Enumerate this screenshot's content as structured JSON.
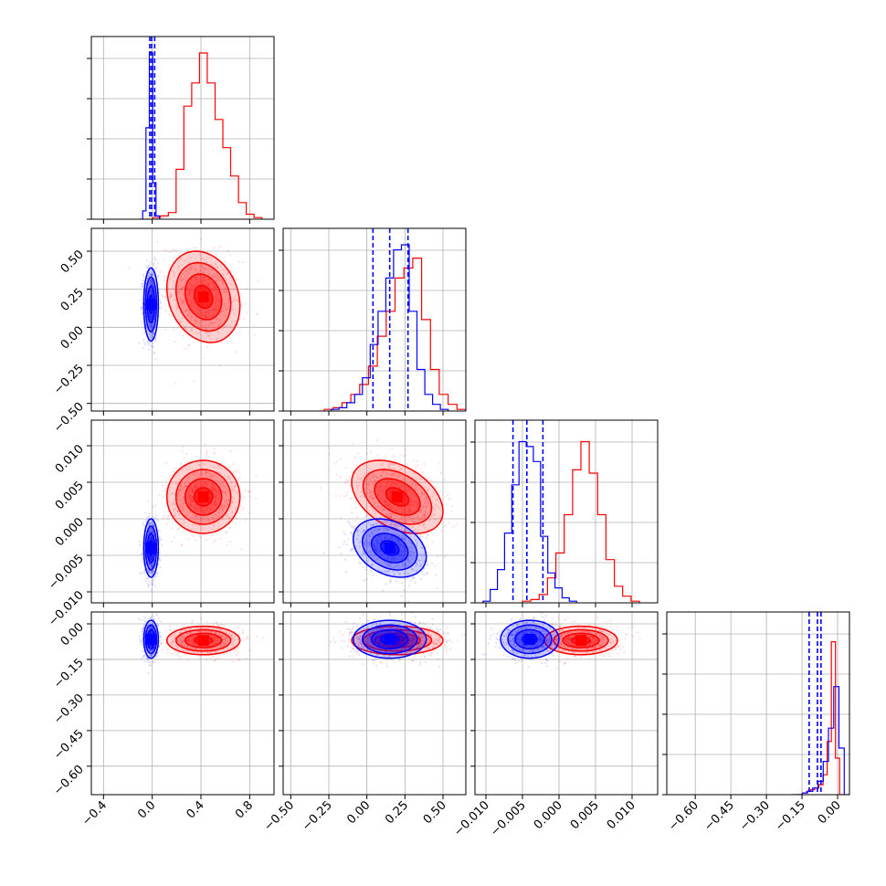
{
  "chart_data": {
    "type": "corner",
    "grid": true,
    "series_colors": {
      "red": "#ff0000",
      "blue": "#0000ff"
    },
    "parameters": [
      {
        "range": [
          -0.5,
          1.0
        ],
        "ticks": [
          -0.4,
          0.0,
          0.4,
          0.8
        ],
        "tick_labels": [
          "−0.4",
          "0.0",
          "0.4",
          "0.8"
        ]
      },
      {
        "range": [
          -0.55,
          0.65
        ],
        "ticks": [
          -0.5,
          -0.25,
          0.0,
          0.25,
          0.5
        ],
        "tick_labels": [
          "−0.50",
          "−0.25",
          "0.00",
          "0.25",
          "0.50"
        ]
      },
      {
        "range": [
          -0.0115,
          0.0135
        ],
        "ticks": [
          -0.01,
          -0.005,
          0.0,
          0.005,
          0.01
        ],
        "tick_labels": [
          "−0.010",
          "−0.005",
          "0.000",
          "0.005",
          "0.010"
        ]
      },
      {
        "range": [
          -0.72,
          0.05
        ],
        "ticks": [
          -0.6,
          -0.45,
          -0.3,
          -0.15,
          0.0
        ],
        "tick_labels": [
          "−0.60",
          "−0.45",
          "−0.30",
          "−0.15",
          "0.00"
        ]
      }
    ],
    "series": [
      {
        "color": "red",
        "mean": [
          0.42,
          0.2,
          0.003,
          -0.07
        ],
        "std": [
          0.15,
          0.15,
          0.0025,
          0.03
        ],
        "corr": [
          [
            1,
            -0.2,
            0.0,
            0.0
          ],
          [
            -0.2,
            1,
            -0.4,
            0.0
          ],
          [
            0.0,
            -0.4,
            1,
            0.0
          ],
          [
            0.0,
            0.0,
            0.0,
            1
          ]
        ],
        "histograms": [
          [
            0.0,
            0.01,
            0.02,
            0.04,
            0.3,
            0.68,
            0.82,
            1.0,
            0.82,
            0.6,
            0.43,
            0.26,
            0.1,
            0.03,
            0.01
          ],
          [
            0.01,
            0.02,
            0.05,
            0.1,
            0.16,
            0.27,
            0.45,
            0.6,
            0.8,
            0.86,
            0.92,
            0.55,
            0.25,
            0.1,
            0.04,
            0.01
          ],
          [
            0.01,
            0.02,
            0.05,
            0.15,
            0.3,
            0.53,
            0.8,
            0.97,
            0.78,
            0.53,
            0.26,
            0.1,
            0.04,
            0.01
          ],
          [
            0.0,
            0.01,
            0.02,
            0.03,
            0.04,
            0.06,
            0.12,
            0.32,
            0.92,
            0.22,
            0.0
          ]
        ]
      },
      {
        "color": "blue",
        "mean": [
          -0.01,
          0.15,
          -0.004,
          -0.065
        ],
        "std": [
          0.03,
          0.12,
          0.002,
          0.04
        ],
        "corr": [
          [
            1,
            0.0,
            0.0,
            0.0
          ],
          [
            0.0,
            1,
            -0.3,
            0.0
          ],
          [
            0.0,
            -0.3,
            1,
            0.0
          ],
          [
            0.0,
            0.0,
            0.0,
            1
          ]
        ],
        "quantiles": [
          [
            -0.02,
            -0.005,
            0.02
          ],
          [
            0.04,
            0.15,
            0.27
          ],
          [
            -0.0063,
            -0.0044,
            -0.0022
          ],
          [
            -0.12,
            -0.085,
            -0.07
          ]
        ],
        "histograms": [
          [
            0.0,
            0.05,
            0.55,
            1.0,
            0.22,
            0.02,
            0.0
          ],
          [
            0.01,
            0.02,
            0.05,
            0.1,
            0.2,
            0.4,
            0.6,
            0.8,
            0.97,
            1.0,
            0.6,
            0.25,
            0.1,
            0.04,
            0.01
          ],
          [
            0.01,
            0.08,
            0.2,
            0.42,
            0.71,
            0.97,
            0.94,
            0.85,
            0.4,
            0.18,
            0.09,
            0.03,
            0.01
          ],
          [
            0.0,
            0.0,
            0.01,
            0.02,
            0.04,
            0.08,
            0.2,
            0.4,
            0.65,
            0.28,
            0.0
          ]
        ]
      }
    ]
  }
}
